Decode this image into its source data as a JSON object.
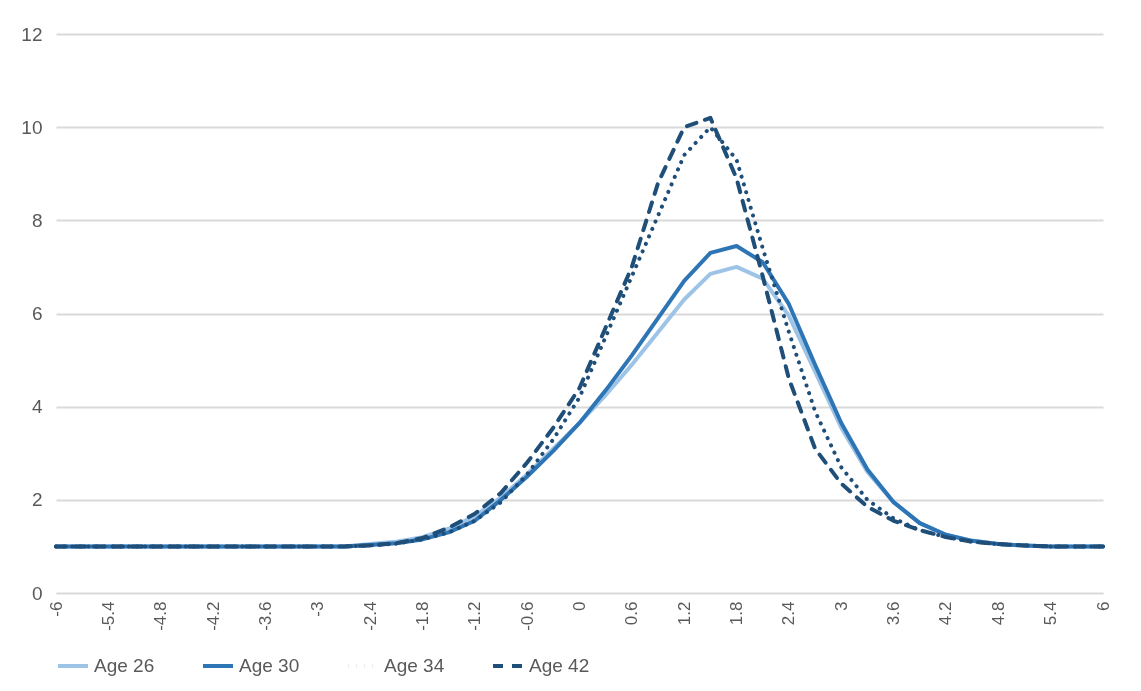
{
  "chart_data": {
    "type": "line",
    "x": [
      -6,
      -5.7,
      -5.4,
      -5.1,
      -4.8,
      -4.5,
      -4.2,
      -3.9,
      -3.6,
      -3.3,
      -3,
      -2.7,
      -2.4,
      -2.1,
      -1.8,
      -1.5,
      -1.2,
      -0.9,
      -0.6,
      -0.3,
      0,
      0.3,
      0.6,
      0.9,
      1.2,
      1.5,
      1.8,
      2.1,
      2.4,
      2.7,
      3,
      3.3,
      3.6,
      3.9,
      4.2,
      4.5,
      4.8,
      5.1,
      5.4,
      5.7,
      6
    ],
    "xlim": [
      -6,
      6
    ],
    "xticks": [
      -6,
      -5.4,
      -4.8,
      -4.2,
      -3.6,
      -3,
      -2.4,
      -1.8,
      -1.2,
      -0.6,
      0,
      0.6,
      1.2,
      1.8,
      2.4,
      3,
      3.6,
      4.2,
      4.8,
      5.4,
      6
    ],
    "ylim": [
      0,
      12
    ],
    "yticks": [
      0,
      2,
      4,
      6,
      8,
      10,
      12
    ],
    "grid": "y",
    "legend": "bottom",
    "marker": "none",
    "series": [
      {
        "name": "Age 26",
        "color": "#9dc3e6",
        "line_style": "solid",
        "values": [
          1,
          1,
          1,
          1,
          1,
          1,
          1,
          1,
          1,
          1,
          1,
          1,
          1.05,
          1.1,
          1.2,
          1.38,
          1.65,
          2.05,
          2.55,
          3.1,
          3.65,
          4.25,
          4.9,
          5.6,
          6.3,
          6.85,
          7.0,
          6.75,
          5.95,
          4.75,
          3.55,
          2.6,
          1.95,
          1.5,
          1.25,
          1.12,
          1.05,
          1.02,
          1,
          1,
          1
        ]
      },
      {
        "name": "Age 30",
        "color": "#2e75b6",
        "line_style": "solid",
        "values": [
          1,
          1,
          1,
          1,
          1,
          1,
          1,
          1,
          1,
          1,
          1,
          1,
          1.03,
          1.07,
          1.15,
          1.3,
          1.55,
          2.0,
          2.5,
          3.05,
          3.65,
          4.35,
          5.1,
          5.9,
          6.7,
          7.3,
          7.45,
          7.1,
          6.2,
          4.9,
          3.65,
          2.65,
          1.95,
          1.5,
          1.25,
          1.12,
          1.05,
          1.02,
          1,
          1,
          1
        ]
      },
      {
        "name": "Age 34",
        "color": "#1f4e79",
        "line_style": "dotted",
        "values": [
          1,
          1,
          1,
          1,
          1,
          1,
          1,
          1,
          1,
          1,
          1,
          1,
          1.02,
          1.06,
          1.15,
          1.3,
          1.55,
          1.95,
          2.55,
          3.3,
          4.2,
          5.5,
          6.8,
          8.1,
          9.4,
          10.0,
          9.3,
          7.4,
          5.6,
          3.9,
          2.7,
          2.0,
          1.6,
          1.35,
          1.2,
          1.1,
          1.05,
          1.02,
          1,
          1,
          1
        ]
      },
      {
        "name": "Age 42",
        "color": "#1f4e79",
        "line_style": "dashed",
        "values": [
          1,
          1,
          1,
          1,
          1,
          1,
          1,
          1,
          1,
          1,
          1,
          1,
          1.02,
          1.07,
          1.18,
          1.4,
          1.7,
          2.15,
          2.8,
          3.55,
          4.4,
          5.7,
          7.0,
          8.8,
          10.0,
          10.2,
          8.9,
          6.8,
          4.6,
          3.1,
          2.35,
          1.85,
          1.55,
          1.35,
          1.2,
          1.1,
          1.05,
          1.02,
          1,
          1,
          1
        ]
      }
    ]
  }
}
